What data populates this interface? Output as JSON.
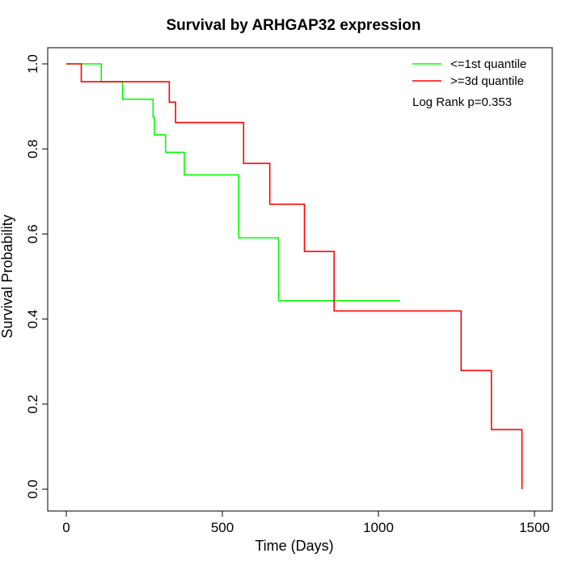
{
  "chart_data": {
    "type": "line",
    "title": "Survival by ARHGAP32 expression",
    "xlabel": "Time (Days)",
    "ylabel": "Survival Probability",
    "xlim": [
      0,
      1500
    ],
    "ylim": [
      0,
      1.0
    ],
    "x_ticks": [
      0,
      500,
      1000,
      1500
    ],
    "x_tick_labels": [
      "0",
      "500",
      "1000",
      "1500"
    ],
    "y_ticks": [
      0.0,
      0.2,
      0.4,
      0.6,
      0.8,
      1.0
    ],
    "y_tick_labels": [
      "0.0",
      "0.2",
      "0.4",
      "0.6",
      "0.8",
      "1.0"
    ],
    "grid": false,
    "legend_position": "top-right",
    "annotation": "Log Rank p=0.353",
    "series": [
      {
        "name": "<=1st quantile",
        "color": "#00ff00",
        "step": true,
        "x": [
          0,
          112,
          180,
          278,
          282,
          318,
          378,
          552,
          680,
          1070
        ],
        "y": [
          1.0,
          0.958,
          0.917,
          0.875,
          0.833,
          0.792,
          0.739,
          0.591,
          0.443,
          0.443
        ]
      },
      {
        "name": ">=3d quantile",
        "color": "#ff0000",
        "step": true,
        "x": [
          0,
          48,
          330,
          350,
          568,
          652,
          763,
          858,
          1265,
          1362,
          1460,
          1460
        ],
        "y": [
          1.0,
          0.958,
          0.91,
          0.862,
          0.766,
          0.67,
          0.559,
          0.419,
          0.279,
          0.14,
          0.14,
          0.0
        ]
      }
    ]
  }
}
